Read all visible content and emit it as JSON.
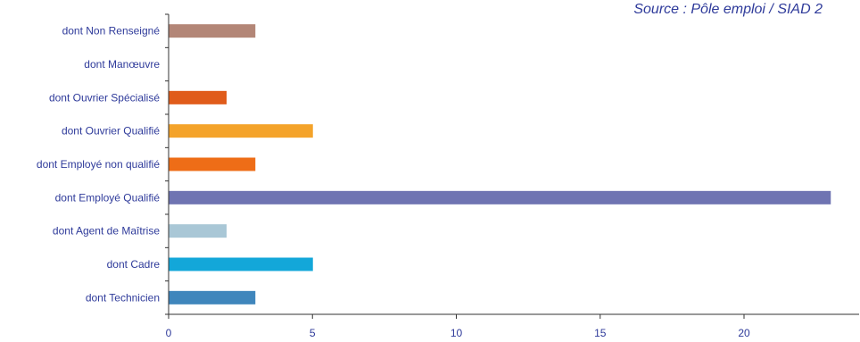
{
  "source": "Source : Pôle emploi / SIAD 2",
  "chart_data": {
    "type": "bar",
    "orientation": "horizontal",
    "categories": [
      "dont Non Renseigné",
      "dont Manœuvre",
      "dont Ouvrier Spécialisé",
      "dont Ouvrier Qualifié",
      "dont Employé non qualifié",
      "dont Employé Qualifié",
      "dont Agent de Maîtrise",
      "dont Cadre",
      "dont Technicien"
    ],
    "values": [
      3,
      0,
      2,
      5,
      3,
      23,
      2,
      5,
      3
    ],
    "colors": [
      "#b38677",
      "#999999",
      "#e05c1b",
      "#f4a32a",
      "#ee6d17",
      "#6f74b2",
      "#a9c7d6",
      "#13a7d9",
      "#3f86bc"
    ],
    "xlim": [
      0,
      24
    ],
    "xticks": [
      0,
      5,
      10,
      15,
      20
    ],
    "tick_labels": [
      "0",
      "5",
      "10",
      "15",
      "20"
    ],
    "title": "",
    "xlabel": "",
    "ylabel": "",
    "grid": false,
    "legend": "none"
  }
}
